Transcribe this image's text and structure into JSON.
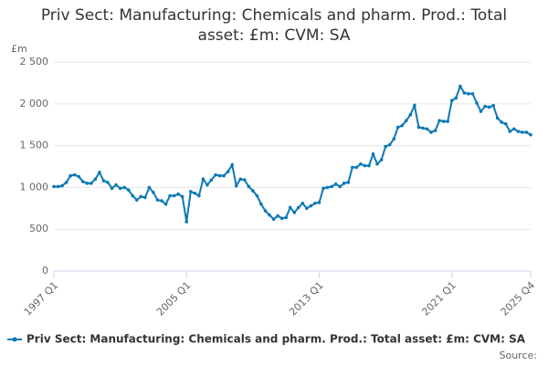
{
  "chart_data": {
    "type": "line",
    "title": "Priv Sect: Manufacturing: Chemicals and pharm. Prod.: Total asset: £m: CVM: SA",
    "y_label": "£m",
    "source": "Source:",
    "categories": [
      "1997 Q1",
      null,
      null,
      null,
      null,
      null,
      null,
      null,
      null,
      null,
      null,
      null,
      null,
      null,
      null,
      null,
      null,
      null,
      null,
      null,
      null,
      null,
      null,
      null,
      null,
      null,
      null,
      null,
      null,
      null,
      null,
      null,
      "2005 Q1",
      null,
      null,
      null,
      null,
      null,
      null,
      null,
      null,
      null,
      null,
      null,
      null,
      null,
      null,
      null,
      null,
      null,
      null,
      null,
      null,
      null,
      null,
      null,
      null,
      null,
      null,
      null,
      null,
      null,
      null,
      null,
      "2013 Q1",
      null,
      null,
      null,
      null,
      null,
      null,
      null,
      null,
      null,
      null,
      null,
      null,
      null,
      null,
      null,
      null,
      null,
      null,
      null,
      null,
      null,
      null,
      null,
      null,
      null,
      null,
      null,
      null,
      null,
      null,
      null,
      "2021 Q1",
      null,
      null,
      null,
      null,
      null,
      null,
      null,
      null,
      null,
      null,
      null,
      null,
      null,
      null,
      null,
      null,
      null,
      null,
      "2025 Q4"
    ],
    "series": [
      {
        "name": "Priv Sect: Manufacturing: Chemicals and pharm. Prod.: Total asset: £m: CVM: SA",
        "color": "#0b79b5",
        "values": [
          1010,
          1010,
          1020,
          1060,
          1140,
          1150,
          1130,
          1070,
          1050,
          1050,
          1100,
          1180,
          1080,
          1060,
          990,
          1030,
          990,
          1000,
          970,
          900,
          850,
          890,
          880,
          1000,
          940,
          850,
          840,
          800,
          900,
          900,
          920,
          890,
          590,
          950,
          930,
          900,
          1100,
          1030,
          1090,
          1150,
          1140,
          1140,
          1190,
          1270,
          1020,
          1100,
          1090,
          1010,
          960,
          900,
          800,
          720,
          670,
          620,
          660,
          630,
          640,
          760,
          700,
          760,
          810,
          750,
          780,
          810,
          820,
          990,
          1000,
          1010,
          1040,
          1010,
          1050,
          1060,
          1240,
          1240,
          1280,
          1260,
          1260,
          1400,
          1280,
          1330,
          1490,
          1510,
          1580,
          1720,
          1740,
          1800,
          1870,
          1980,
          1720,
          1710,
          1700,
          1660,
          1680,
          1800,
          1790,
          1790,
          2040,
          2070,
          2210,
          2130,
          2120,
          2120,
          2010,
          1910,
          1970,
          1960,
          1980,
          1830,
          1780,
          1760,
          1670,
          1700,
          1670,
          1660,
          1660,
          1630
        ]
      }
    ],
    "ylim": [
      0,
      2500
    ],
    "yticks": [
      0,
      500,
      {
        "value": 1000,
        "label": "1 000"
      },
      {
        "value": 1500,
        "label": "1 500"
      },
      {
        "value": 2000,
        "label": "2 000"
      },
      {
        "value": 2500,
        "label": "2 500"
      }
    ],
    "grid": true
  }
}
